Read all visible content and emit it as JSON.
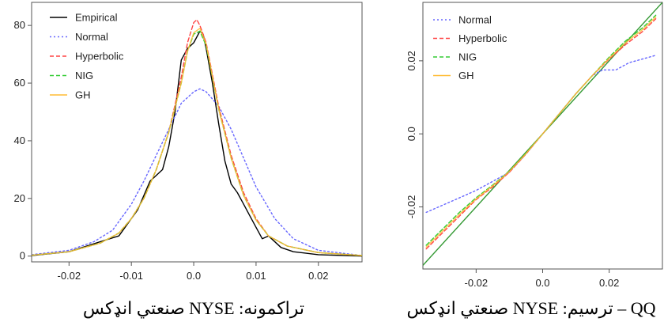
{
  "chart_data": [
    {
      "type": "line",
      "caption": "تراكمونه: NYSE صنعتي انډكس",
      "xlim": [
        -0.026,
        0.027
      ],
      "ylim": [
        -2,
        88
      ],
      "xticks": [
        "-0.02",
        "-0.01",
        "0.0",
        "0.01",
        "0.02"
      ],
      "xtick_values": [
        -0.02,
        -0.01,
        0.0,
        0.01,
        0.02
      ],
      "yticks": [
        "0",
        "20",
        "40",
        "60",
        "80"
      ],
      "ytick_values": [
        0,
        20,
        40,
        60,
        80
      ],
      "grid": false,
      "legend_position": "top-left",
      "series": [
        {
          "name": "Empirical",
          "color": "#000000",
          "dash": "solid",
          "x": [
            -0.026,
            -0.02,
            -0.015,
            -0.012,
            -0.009,
            -0.007,
            -0.005,
            -0.004,
            -0.003,
            -0.002,
            -0.001,
            0.0,
            0.001,
            0.0015,
            0.002,
            0.003,
            0.004,
            0.005,
            0.006,
            0.007,
            0.008,
            0.009,
            0.01,
            0.011,
            0.012,
            0.014,
            0.016,
            0.02,
            0.027
          ],
          "y": [
            0.2,
            1.5,
            5,
            7,
            16,
            26,
            30,
            38,
            50,
            68,
            72,
            74,
            78,
            77,
            72,
            60,
            46,
            33,
            25,
            22,
            18,
            14,
            10,
            6,
            7,
            3,
            1.5,
            0.5,
            0
          ]
        },
        {
          "name": "Normal",
          "color": "#6666ff",
          "dash": "dotted",
          "x": [
            -0.026,
            -0.02,
            -0.016,
            -0.013,
            -0.01,
            -0.008,
            -0.006,
            -0.004,
            -0.002,
            0.0,
            0.001,
            0.002,
            0.004,
            0.006,
            0.008,
            0.01,
            0.013,
            0.016,
            0.02,
            0.027
          ],
          "y": [
            0.5,
            2,
            5,
            9,
            18,
            26,
            35,
            44,
            53,
            57,
            58,
            57,
            52,
            44,
            34,
            24,
            13,
            6,
            2,
            0.2
          ]
        },
        {
          "name": "Hyperbolic",
          "color": "#ff4444",
          "dash": "dashed",
          "x": [
            -0.026,
            -0.02,
            -0.015,
            -0.012,
            -0.01,
            -0.008,
            -0.006,
            -0.004,
            -0.002,
            -0.001,
            0.0,
            0.0005,
            0.001,
            0.002,
            0.004,
            0.006,
            0.008,
            0.01,
            0.012,
            0.015,
            0.02,
            0.027
          ],
          "y": [
            0.3,
            1.5,
            4.5,
            8,
            13,
            20,
            30,
            43,
            62,
            74,
            81,
            82,
            80,
            74,
            52,
            35,
            22,
            13,
            7,
            3.5,
            1.2,
            0.2
          ]
        },
        {
          "name": "NIG",
          "color": "#33cc33",
          "dash": "dashed",
          "x": [
            -0.026,
            -0.02,
            -0.015,
            -0.012,
            -0.01,
            -0.008,
            -0.006,
            -0.004,
            -0.002,
            -0.001,
            0.0,
            0.001,
            0.002,
            0.004,
            0.006,
            0.008,
            0.01,
            0.012,
            0.015,
            0.02,
            0.027
          ],
          "y": [
            0.3,
            1.5,
            4.5,
            8,
            13,
            20,
            30,
            43,
            60,
            71,
            77,
            78,
            73,
            51,
            34,
            21,
            12.5,
            7,
            3.5,
            1.2,
            0.2
          ]
        },
        {
          "name": "GH",
          "color": "#ffbb33",
          "dash": "solid",
          "x": [
            -0.026,
            -0.02,
            -0.015,
            -0.012,
            -0.01,
            -0.008,
            -0.006,
            -0.004,
            -0.002,
            -0.001,
            0.0,
            0.001,
            0.002,
            0.004,
            0.006,
            0.008,
            0.01,
            0.012,
            0.015,
            0.02,
            0.027
          ],
          "y": [
            0.3,
            1.5,
            4.5,
            8,
            13,
            20,
            30,
            43,
            60,
            71,
            77.5,
            79,
            73.5,
            51,
            34,
            21,
            12.5,
            7,
            3.5,
            1.2,
            0.2
          ]
        }
      ]
    },
    {
      "type": "line",
      "caption": "QQ – ترسیم: NYSE صنعتي انډكس",
      "xlim": [
        -0.036,
        0.036
      ],
      "ylim": [
        -0.037,
        0.036
      ],
      "xticks": [
        "-0.02",
        "0.0",
        "0.02"
      ],
      "xtick_values": [
        -0.02,
        0.0,
        0.02
      ],
      "yticks": [
        "-0.02",
        "0.0",
        "0.02"
      ],
      "ytick_values": [
        -0.02,
        0.0,
        0.02
      ],
      "grid": false,
      "legend_position": "top-left",
      "series": [
        {
          "name": "",
          "color": "#339933",
          "dash": "solid",
          "x": [
            -0.036,
            0.036
          ],
          "y": [
            -0.036,
            0.036
          ]
        },
        {
          "name": "Normal",
          "color": "#6666ff",
          "dash": "dotted",
          "x": [
            -0.035,
            -0.03,
            -0.025,
            -0.02,
            -0.015,
            -0.01,
            -0.005,
            0.0,
            0.005,
            0.01,
            0.015,
            0.018,
            0.022,
            0.026,
            0.03,
            0.034
          ],
          "y": [
            -0.0215,
            -0.0195,
            -0.0175,
            -0.0155,
            -0.013,
            -0.0105,
            -0.0055,
            0.0,
            0.0055,
            0.011,
            0.016,
            0.0175,
            0.0175,
            0.0195,
            0.0205,
            0.0215
          ]
        },
        {
          "name": "Hyperbolic",
          "color": "#ff4444",
          "dash": "dashed",
          "x": [
            -0.035,
            -0.03,
            -0.025,
            -0.02,
            -0.015,
            -0.01,
            -0.005,
            0.0,
            0.005,
            0.01,
            0.015,
            0.02,
            0.025,
            0.03,
            0.034
          ],
          "y": [
            -0.0315,
            -0.027,
            -0.0225,
            -0.018,
            -0.0145,
            -0.0105,
            -0.0055,
            0.0,
            0.0055,
            0.011,
            0.016,
            0.0205,
            0.0245,
            0.028,
            0.0315
          ]
        },
        {
          "name": "NIG",
          "color": "#33cc33",
          "dash": "dashed",
          "x": [
            -0.035,
            -0.03,
            -0.025,
            -0.02,
            -0.015,
            -0.01,
            -0.005,
            0.0,
            0.005,
            0.01,
            0.015,
            0.02,
            0.025,
            0.03,
            0.034
          ],
          "y": [
            -0.0305,
            -0.026,
            -0.0215,
            -0.0175,
            -0.014,
            -0.0102,
            -0.0053,
            0.0,
            0.0055,
            0.011,
            0.016,
            0.021,
            0.0255,
            0.029,
            0.0325
          ]
        },
        {
          "name": "GH",
          "color": "#ffbb33",
          "dash": "solid",
          "x": [
            -0.035,
            -0.03,
            -0.025,
            -0.02,
            -0.015,
            -0.01,
            -0.005,
            0.0,
            0.005,
            0.01,
            0.015,
            0.02,
            0.025,
            0.03,
            0.034
          ],
          "y": [
            -0.031,
            -0.0265,
            -0.022,
            -0.0178,
            -0.0142,
            -0.0103,
            -0.0054,
            0.0,
            0.0055,
            0.011,
            0.016,
            0.0207,
            0.025,
            0.0285,
            0.032
          ]
        }
      ]
    }
  ]
}
